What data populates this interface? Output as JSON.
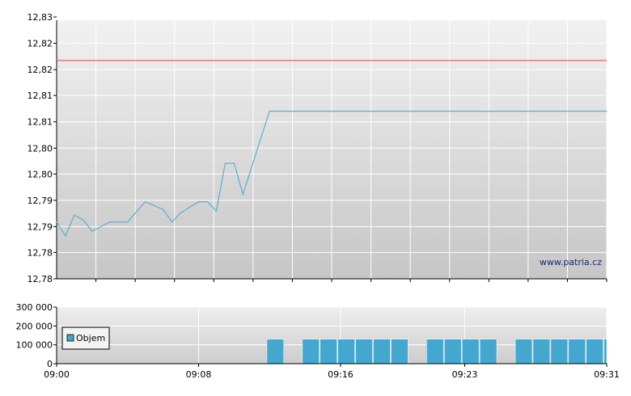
{
  "watermark": "www.patria.cz",
  "colors": {
    "price_line": "#5aaed4",
    "reference_line": "#e06666",
    "volume_bar": "#44a7d0",
    "grid": "#ffffff",
    "frame": "#000000"
  },
  "chart_data": [
    {
      "type": "line",
      "grid": true,
      "x_range": [
        "09:00",
        "09:31"
      ],
      "ylim": [
        12.777,
        12.833
      ],
      "y_ticks": [
        {
          "value": 12.777,
          "label": "12,78"
        },
        {
          "value": 12.7827,
          "label": "12,78"
        },
        {
          "value": 12.7883,
          "label": "12,79"
        },
        {
          "value": 12.794,
          "label": "12,79"
        },
        {
          "value": 12.7997,
          "label": "12,80"
        },
        {
          "value": 12.8053,
          "label": "12,80"
        },
        {
          "value": 12.811,
          "label": "12,81"
        },
        {
          "value": 12.8167,
          "label": "12,81"
        },
        {
          "value": 12.8223,
          "label": "12,82"
        },
        {
          "value": 12.828,
          "label": "12,82"
        },
        {
          "value": 12.8337,
          "label": "12,83"
        }
      ],
      "reference_line": {
        "value": 12.8243
      },
      "series": [
        {
          "points": [
            [
              "09:00",
              12.7893
            ],
            [
              "09:00",
              12.7863
            ],
            [
              "09:01",
              12.7908
            ],
            [
              "09:01",
              12.7897
            ],
            [
              "09:02",
              12.7873
            ],
            [
              "09:03",
              12.7893
            ],
            [
              "09:04",
              12.7893
            ],
            [
              "09:05",
              12.7937
            ],
            [
              "09:06",
              12.792
            ],
            [
              "09:06",
              12.7893
            ],
            [
              "09:07",
              12.7913
            ],
            [
              "09:08",
              12.7937
            ],
            [
              "09:08",
              12.7937
            ],
            [
              "09:09",
              12.7917
            ],
            [
              "09:09",
              12.802
            ],
            [
              "09:10",
              12.802
            ],
            [
              "09:10",
              12.7953
            ],
            [
              "09:12",
              12.8133
            ],
            [
              "09:31",
              12.8133
            ]
          ]
        }
      ]
    },
    {
      "type": "bar",
      "grid": true,
      "x_ticks": [
        "09:00",
        "09:08",
        "09:16",
        "09:23",
        "09:31"
      ],
      "ylim": [
        0,
        300000
      ],
      "y_ticks": [
        {
          "value": 0,
          "label": "0"
        },
        {
          "value": 100000,
          "label": "100 000"
        },
        {
          "value": 200000,
          "label": "200 000"
        },
        {
          "value": 300000,
          "label": "300 000"
        }
      ],
      "legend": {
        "position": "top-left",
        "label": "Objem"
      },
      "series": [
        {
          "name": "Objem",
          "bars": [
            [
              "09:12",
              130000
            ],
            [
              "09:14",
              130000
            ],
            [
              "09:15",
              130000
            ],
            [
              "09:16",
              130000
            ],
            [
              "09:17",
              130000
            ],
            [
              "09:18",
              130000
            ],
            [
              "09:19",
              130000
            ],
            [
              "09:21",
              130000
            ],
            [
              "09:22",
              130000
            ],
            [
              "09:23",
              130000
            ],
            [
              "09:24",
              130000
            ],
            [
              "09:26",
              130000
            ],
            [
              "09:27",
              130000
            ],
            [
              "09:28",
              130000
            ],
            [
              "09:29",
              130000
            ],
            [
              "09:30",
              130000
            ],
            [
              "09:31",
              130000
            ]
          ]
        }
      ]
    }
  ]
}
